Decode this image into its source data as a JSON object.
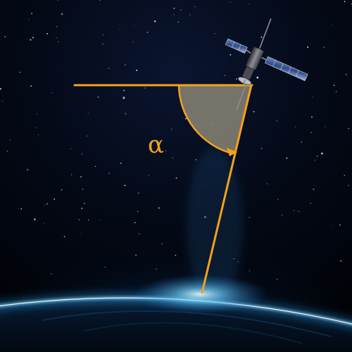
{
  "angle": {
    "symbol": "α"
  },
  "colors": {
    "space": "#02050c",
    "construction_line": "#f5a11c",
    "angle_fill": "#8a8576",
    "horizon_glow": "#3ab8ff"
  },
  "icons": {
    "satellite": "satellite-icon"
  }
}
